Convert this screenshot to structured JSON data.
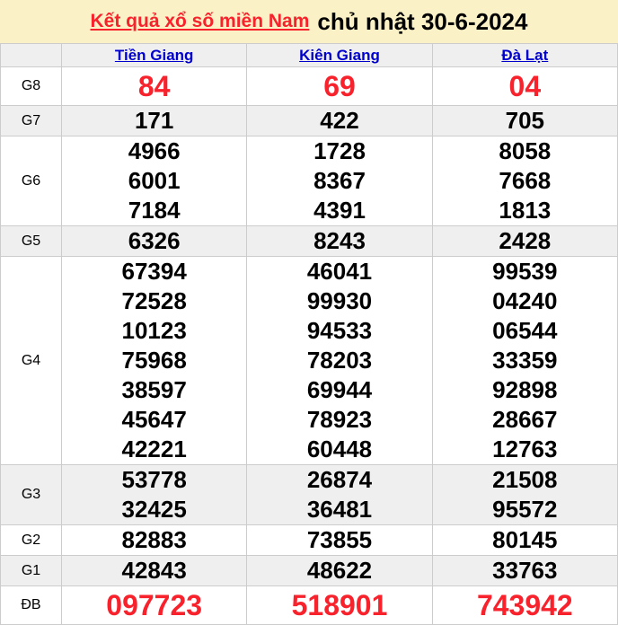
{
  "title": {
    "link": "Kết quả xổ số miền Nam",
    "date": "chủ nhật 30-6-2024"
  },
  "columns": [
    "Tiền Giang",
    "Kiên Giang",
    "Đà Lạt"
  ],
  "rows": [
    {
      "label": "G8",
      "highlight": true,
      "cells": [
        [
          "84"
        ],
        [
          "69"
        ],
        [
          "04"
        ]
      ]
    },
    {
      "label": "G7",
      "highlight": false,
      "cells": [
        [
          "171"
        ],
        [
          "422"
        ],
        [
          "705"
        ]
      ]
    },
    {
      "label": "G6",
      "highlight": false,
      "cells": [
        [
          "4966",
          "6001",
          "7184"
        ],
        [
          "1728",
          "8367",
          "4391"
        ],
        [
          "8058",
          "7668",
          "1813"
        ]
      ]
    },
    {
      "label": "G5",
      "highlight": false,
      "cells": [
        [
          "6326"
        ],
        [
          "8243"
        ],
        [
          "2428"
        ]
      ]
    },
    {
      "label": "G4",
      "highlight": false,
      "cells": [
        [
          "67394",
          "72528",
          "10123",
          "75968",
          "38597",
          "45647",
          "42221"
        ],
        [
          "46041",
          "99930",
          "94533",
          "78203",
          "69944",
          "78923",
          "60448"
        ],
        [
          "99539",
          "04240",
          "06544",
          "33359",
          "92898",
          "28667",
          "12763"
        ]
      ]
    },
    {
      "label": "G3",
      "highlight": false,
      "cells": [
        [
          "53778",
          "32425"
        ],
        [
          "26874",
          "36481"
        ],
        [
          "21508",
          "95572"
        ]
      ]
    },
    {
      "label": "G2",
      "highlight": false,
      "cells": [
        [
          "82883"
        ],
        [
          "73855"
        ],
        [
          "80145"
        ]
      ]
    },
    {
      "label": "G1",
      "highlight": false,
      "cells": [
        [
          "42843"
        ],
        [
          "48622"
        ],
        [
          "33763"
        ]
      ]
    },
    {
      "label": "ĐB",
      "highlight": true,
      "cells": [
        [
          "097723"
        ],
        [
          "518901"
        ],
        [
          "743942"
        ]
      ]
    }
  ],
  "colors": {
    "title_background": "#FBF1C6",
    "highlight_red": "#F8222C",
    "link_blue": "#0000CC",
    "stripe_gray": "#EFEFEF",
    "border_gray": "#CCCCCC"
  }
}
